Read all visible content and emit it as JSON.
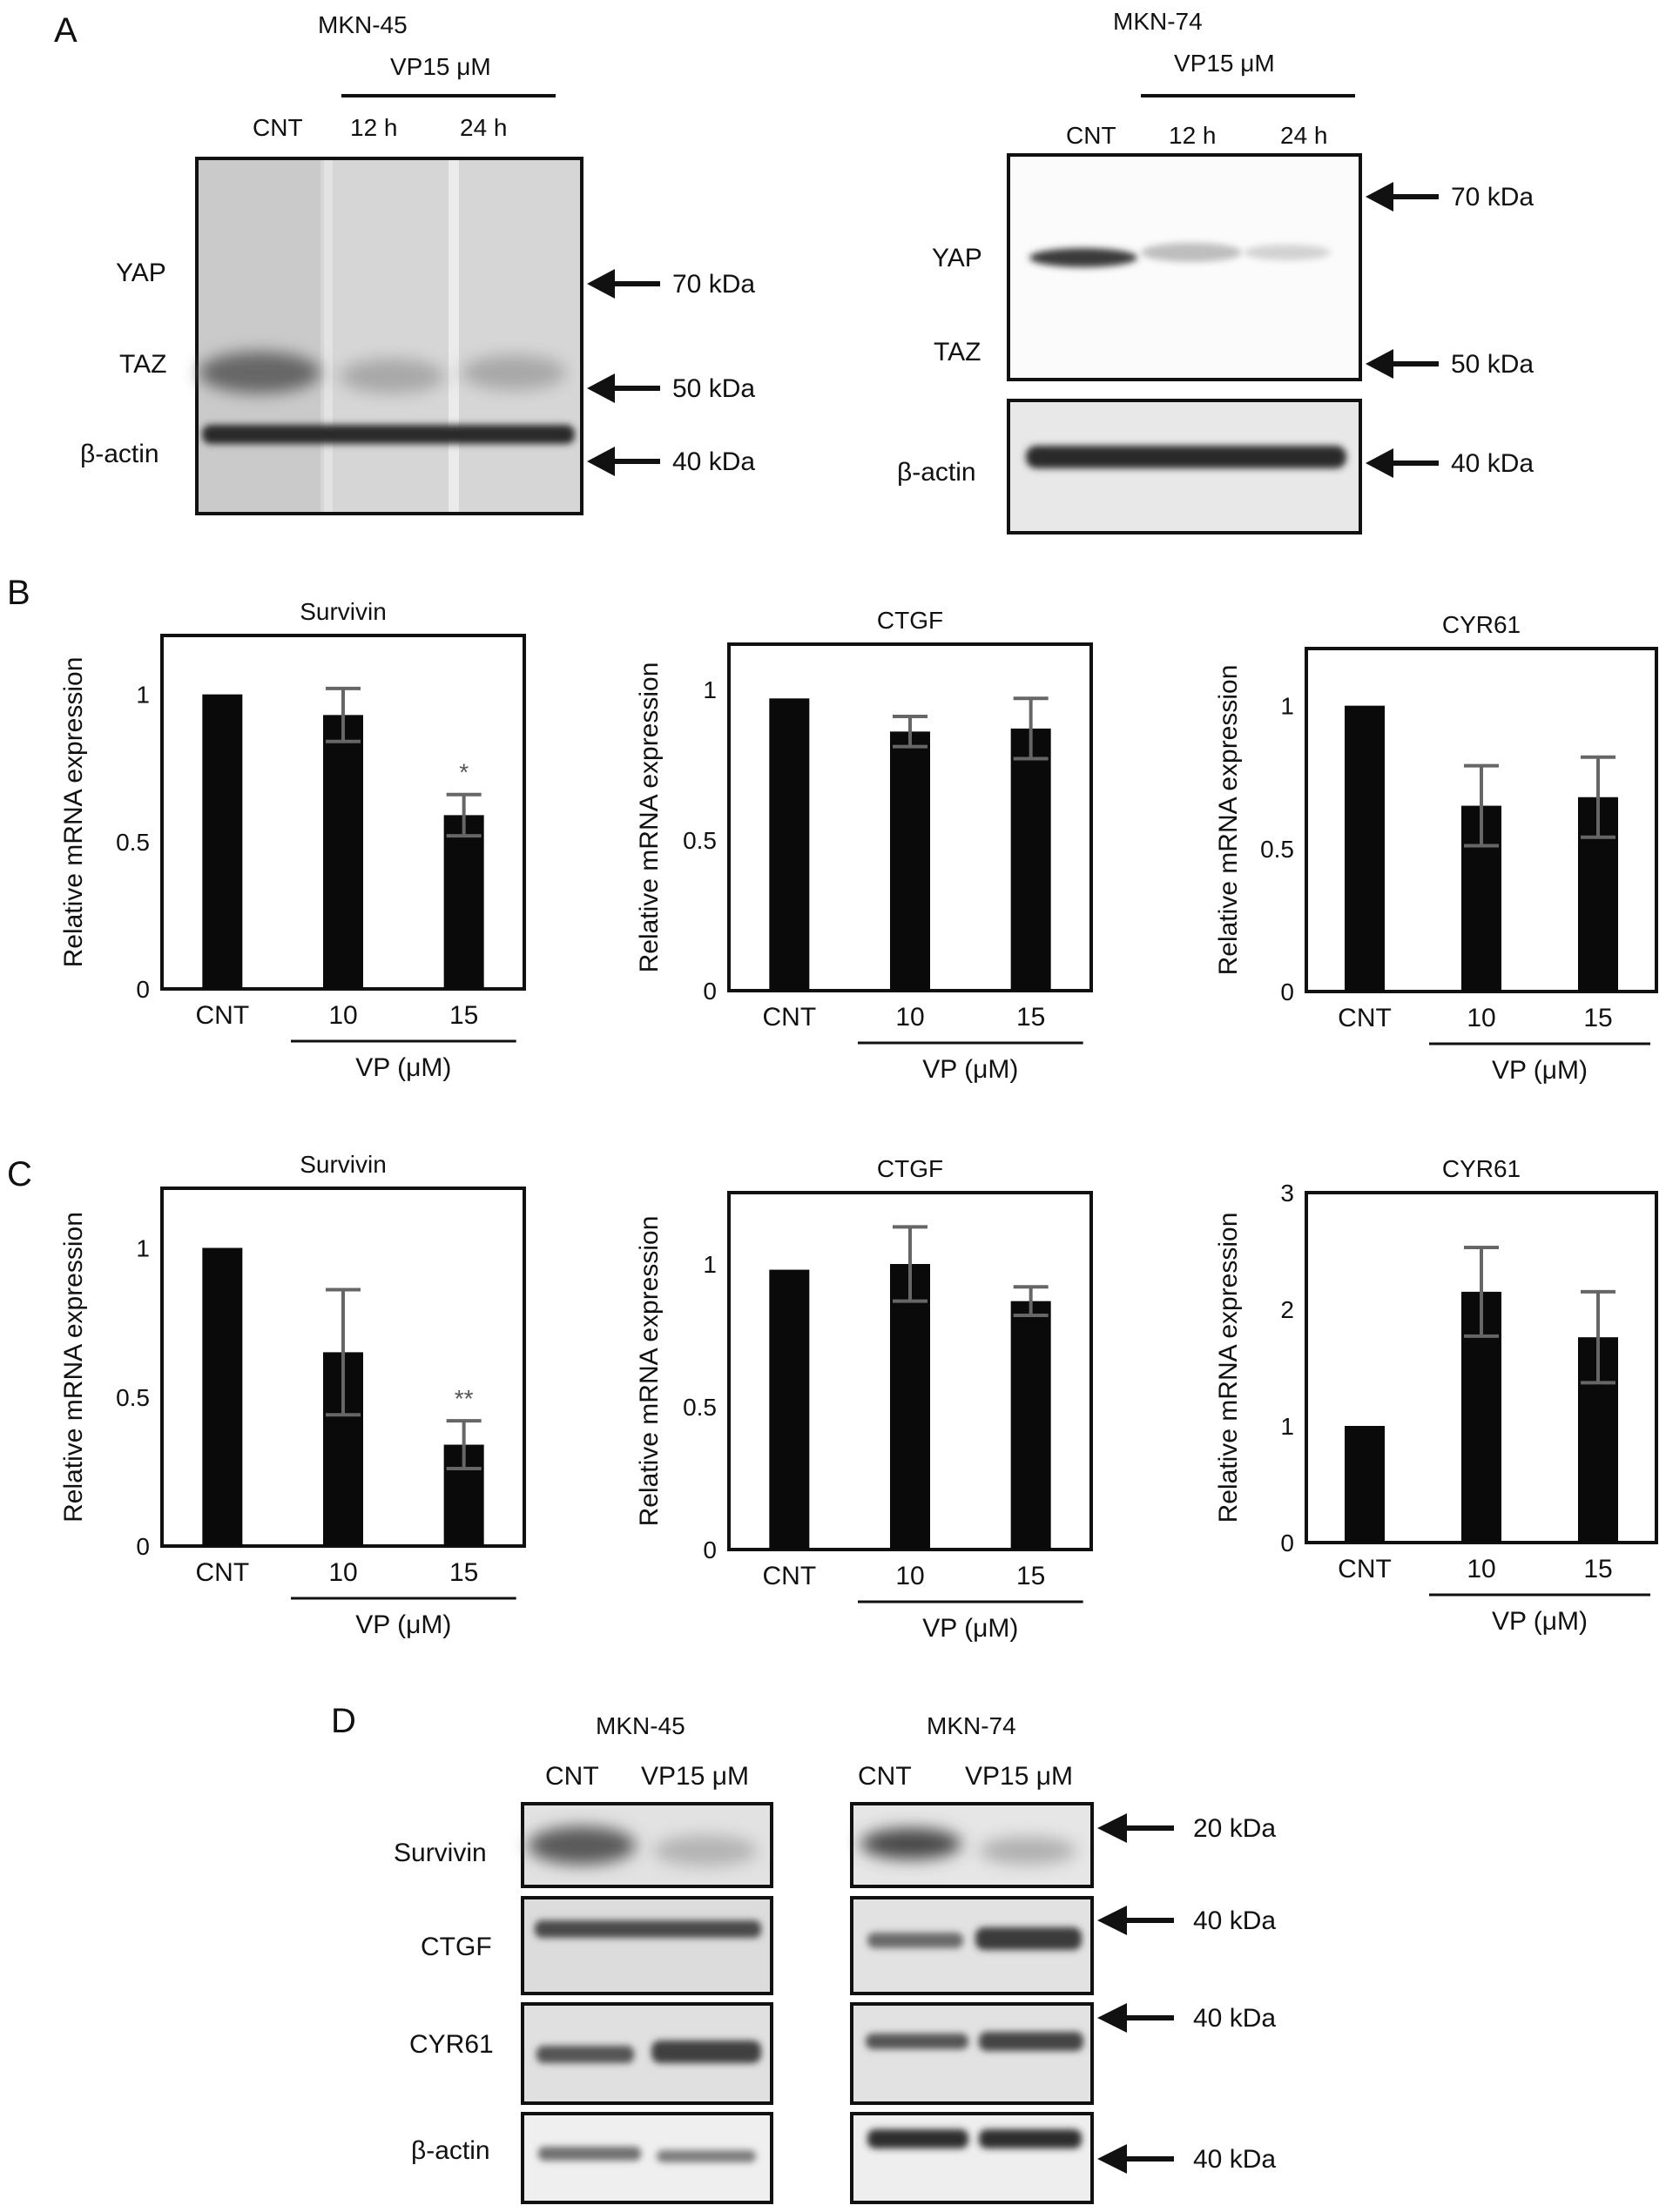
{
  "panel_labels": {
    "a": "A",
    "b": "B",
    "c": "C",
    "d": "D"
  },
  "panel_a": {
    "left": {
      "cell_line": "MKN-45",
      "treatment": "VP15 μM",
      "lanes": [
        "CNT",
        "12 h",
        "24 h"
      ],
      "bands": [
        "YAP",
        "TAZ",
        "β-actin"
      ],
      "markers": [
        "70 kDa",
        "50 kDa",
        "40 kDa"
      ]
    },
    "right": {
      "cell_line": "MKN-74",
      "treatment": "VP15 μM",
      "lanes": [
        "CNT",
        "12 h",
        "24 h"
      ],
      "bands": [
        "YAP",
        "TAZ",
        "β-actin"
      ],
      "markers": [
        "70 kDa",
        "50 kDa",
        "40 kDa"
      ]
    }
  },
  "axis": {
    "ylabel": "Relative mRNA expression",
    "categories": [
      "CNT",
      "10",
      "15"
    ],
    "group_label": "VP (μM)"
  },
  "chart_data": [
    {
      "panel": "B",
      "type": "bar",
      "title": "Survivin",
      "categories": [
        "CNT",
        "10",
        "15"
      ],
      "values": [
        1.0,
        0.93,
        0.59
      ],
      "errors": [
        0,
        0.09,
        0.07
      ],
      "ylim": [
        0,
        1.2
      ],
      "yticks": [
        0,
        0.5,
        1
      ],
      "ytick_labels": [
        "0",
        "0.5",
        "1"
      ],
      "annotations": [
        "",
        "",
        "*"
      ]
    },
    {
      "panel": "B",
      "type": "bar",
      "title": "CTGF",
      "categories": [
        "CNT",
        "10",
        "15"
      ],
      "values": [
        0.97,
        0.86,
        0.87
      ],
      "errors": [
        0,
        0.05,
        0.1
      ],
      "ylim": [
        0,
        1.15
      ],
      "yticks": [
        0,
        0.5,
        1
      ],
      "ytick_labels": [
        "0",
        "0.5",
        "1"
      ],
      "annotations": [
        "",
        "",
        ""
      ]
    },
    {
      "panel": "B",
      "type": "bar",
      "title": "CYR61",
      "categories": [
        "CNT",
        "10",
        "15"
      ],
      "values": [
        1.0,
        0.65,
        0.68
      ],
      "errors": [
        0,
        0.14,
        0.14
      ],
      "ylim": [
        0,
        1.2
      ],
      "yticks": [
        0,
        0.5,
        1
      ],
      "ytick_labels": [
        "0",
        "0.5",
        "1"
      ],
      "annotations": [
        "",
        "",
        ""
      ]
    },
    {
      "panel": "C",
      "type": "bar",
      "title": "Survivin",
      "categories": [
        "CNT",
        "10",
        "15"
      ],
      "values": [
        1.0,
        0.65,
        0.34
      ],
      "errors": [
        0,
        0.21,
        0.08
      ],
      "ylim": [
        0,
        1.2
      ],
      "yticks": [
        0,
        0.5,
        1
      ],
      "ytick_labels": [
        "0",
        "0.5",
        "1"
      ],
      "annotations": [
        "",
        "",
        "**"
      ]
    },
    {
      "panel": "C",
      "type": "bar",
      "title": "CTGF",
      "categories": [
        "CNT",
        "10",
        "15"
      ],
      "values": [
        0.98,
        1.0,
        0.87
      ],
      "errors": [
        0,
        0.13,
        0.05
      ],
      "ylim": [
        0,
        1.25
      ],
      "yticks": [
        0,
        0.5,
        1
      ],
      "ytick_labels": [
        "0",
        "0.5",
        "1"
      ],
      "annotations": [
        "",
        "",
        ""
      ]
    },
    {
      "panel": "C",
      "type": "bar",
      "title": "CYR61",
      "categories": [
        "CNT",
        "10",
        "15"
      ],
      "values": [
        1.0,
        2.15,
        1.76
      ],
      "errors": [
        0,
        0.38,
        0.39
      ],
      "ylim": [
        0,
        3
      ],
      "yticks": [
        0,
        1,
        2,
        3
      ],
      "ytick_labels": [
        "0",
        "1",
        "2",
        "3"
      ],
      "annotations": [
        "",
        "",
        ""
      ]
    }
  ],
  "panel_d": {
    "left": {
      "cell_line": "MKN-45",
      "lanes": [
        "CNT",
        "VP15 μM"
      ]
    },
    "right": {
      "cell_line": "MKN-74",
      "lanes": [
        "CNT",
        "VP15 μM"
      ]
    },
    "bands": [
      "Survivin",
      "CTGF",
      "CYR61",
      "β-actin"
    ],
    "markers": [
      "20 kDa",
      "40 kDa",
      "40 kDa",
      "40 kDa"
    ]
  }
}
